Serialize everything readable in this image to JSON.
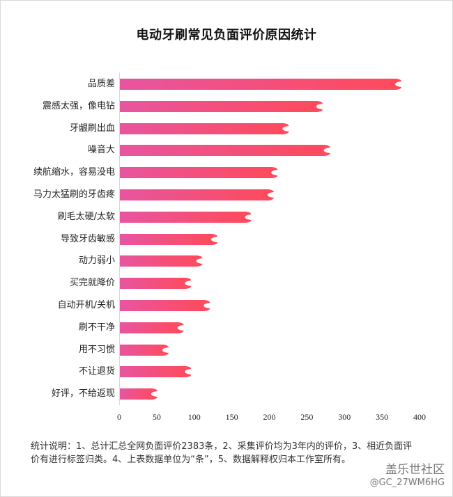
{
  "chart_data": {
    "type": "bar",
    "orientation": "horizontal",
    "title": "电动牙刷常见负面评价原因统计",
    "xlabel": "",
    "ylabel": "",
    "xlim": [
      0,
      400
    ],
    "x_ticks": [
      0,
      50,
      100,
      150,
      200,
      250,
      300,
      350,
      400
    ],
    "grid": false,
    "legend": null,
    "categories": [
      "品质差",
      "震感太强，像电钻",
      "牙龈刷出血",
      "噪音大",
      "续航缩水，容易没电",
      "马力太猛刷的牙齿疼",
      "刷毛太硬/太软",
      "导致牙齿敏感",
      "动力弱小",
      "买完就降价",
      "自动开机/关机",
      "刷不干净",
      "用不习惯",
      "不让退货",
      "好评，不给返现"
    ],
    "values": [
      375,
      270,
      225,
      280,
      210,
      205,
      175,
      130,
      110,
      95,
      120,
      85,
      65,
      95,
      50
    ],
    "bar_gradient": {
      "start": "#e8559f",
      "end": "#ff4a5a"
    }
  },
  "note": {
    "line1": "统计说明：1、总计汇总全网负面评价2383条，2、采集评价均为3年内的评价，3、相近负面评",
    "line2": "价有进行标签归类。4、上表数据单位为“条”，5、数据解释权归本工作室所有。"
  },
  "watermark": {
    "site": "盖乐世社区",
    "user": "@GC_27WM6HG"
  }
}
